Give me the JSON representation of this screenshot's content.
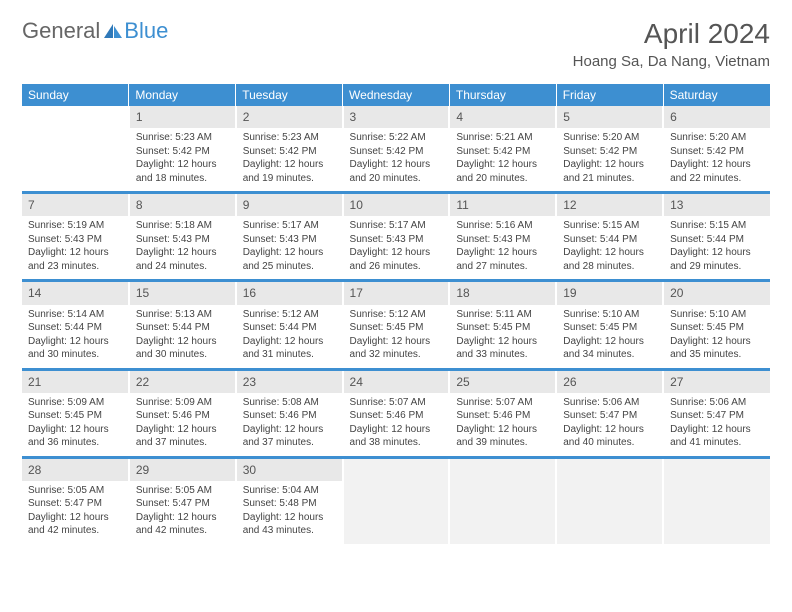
{
  "logo": {
    "general": "General",
    "blue": "Blue"
  },
  "title": "April 2024",
  "location": "Hoang Sa, Da Nang, Vietnam",
  "dayHeaders": [
    "Sunday",
    "Monday",
    "Tuesday",
    "Wednesday",
    "Thursday",
    "Friday",
    "Saturday"
  ],
  "colors": {
    "headerBlue": "#3d8fd1",
    "sailBlue": "#2f79b9",
    "dayNumBg": "#e8e8e8",
    "trailingBg": "#f2f2f2",
    "text": "#444444"
  },
  "layout": {
    "startDayOfWeek": 1,
    "daysInMonth": 30
  },
  "days": {
    "1": {
      "sunrise": "Sunrise: 5:23 AM",
      "sunset": "Sunset: 5:42 PM",
      "daylight1": "Daylight: 12 hours",
      "daylight2": "and 18 minutes."
    },
    "2": {
      "sunrise": "Sunrise: 5:23 AM",
      "sunset": "Sunset: 5:42 PM",
      "daylight1": "Daylight: 12 hours",
      "daylight2": "and 19 minutes."
    },
    "3": {
      "sunrise": "Sunrise: 5:22 AM",
      "sunset": "Sunset: 5:42 PM",
      "daylight1": "Daylight: 12 hours",
      "daylight2": "and 20 minutes."
    },
    "4": {
      "sunrise": "Sunrise: 5:21 AM",
      "sunset": "Sunset: 5:42 PM",
      "daylight1": "Daylight: 12 hours",
      "daylight2": "and 20 minutes."
    },
    "5": {
      "sunrise": "Sunrise: 5:20 AM",
      "sunset": "Sunset: 5:42 PM",
      "daylight1": "Daylight: 12 hours",
      "daylight2": "and 21 minutes."
    },
    "6": {
      "sunrise": "Sunrise: 5:20 AM",
      "sunset": "Sunset: 5:42 PM",
      "daylight1": "Daylight: 12 hours",
      "daylight2": "and 22 minutes."
    },
    "7": {
      "sunrise": "Sunrise: 5:19 AM",
      "sunset": "Sunset: 5:43 PM",
      "daylight1": "Daylight: 12 hours",
      "daylight2": "and 23 minutes."
    },
    "8": {
      "sunrise": "Sunrise: 5:18 AM",
      "sunset": "Sunset: 5:43 PM",
      "daylight1": "Daylight: 12 hours",
      "daylight2": "and 24 minutes."
    },
    "9": {
      "sunrise": "Sunrise: 5:17 AM",
      "sunset": "Sunset: 5:43 PM",
      "daylight1": "Daylight: 12 hours",
      "daylight2": "and 25 minutes."
    },
    "10": {
      "sunrise": "Sunrise: 5:17 AM",
      "sunset": "Sunset: 5:43 PM",
      "daylight1": "Daylight: 12 hours",
      "daylight2": "and 26 minutes."
    },
    "11": {
      "sunrise": "Sunrise: 5:16 AM",
      "sunset": "Sunset: 5:43 PM",
      "daylight1": "Daylight: 12 hours",
      "daylight2": "and 27 minutes."
    },
    "12": {
      "sunrise": "Sunrise: 5:15 AM",
      "sunset": "Sunset: 5:44 PM",
      "daylight1": "Daylight: 12 hours",
      "daylight2": "and 28 minutes."
    },
    "13": {
      "sunrise": "Sunrise: 5:15 AM",
      "sunset": "Sunset: 5:44 PM",
      "daylight1": "Daylight: 12 hours",
      "daylight2": "and 29 minutes."
    },
    "14": {
      "sunrise": "Sunrise: 5:14 AM",
      "sunset": "Sunset: 5:44 PM",
      "daylight1": "Daylight: 12 hours",
      "daylight2": "and 30 minutes."
    },
    "15": {
      "sunrise": "Sunrise: 5:13 AM",
      "sunset": "Sunset: 5:44 PM",
      "daylight1": "Daylight: 12 hours",
      "daylight2": "and 30 minutes."
    },
    "16": {
      "sunrise": "Sunrise: 5:12 AM",
      "sunset": "Sunset: 5:44 PM",
      "daylight1": "Daylight: 12 hours",
      "daylight2": "and 31 minutes."
    },
    "17": {
      "sunrise": "Sunrise: 5:12 AM",
      "sunset": "Sunset: 5:45 PM",
      "daylight1": "Daylight: 12 hours",
      "daylight2": "and 32 minutes."
    },
    "18": {
      "sunrise": "Sunrise: 5:11 AM",
      "sunset": "Sunset: 5:45 PM",
      "daylight1": "Daylight: 12 hours",
      "daylight2": "and 33 minutes."
    },
    "19": {
      "sunrise": "Sunrise: 5:10 AM",
      "sunset": "Sunset: 5:45 PM",
      "daylight1": "Daylight: 12 hours",
      "daylight2": "and 34 minutes."
    },
    "20": {
      "sunrise": "Sunrise: 5:10 AM",
      "sunset": "Sunset: 5:45 PM",
      "daylight1": "Daylight: 12 hours",
      "daylight2": "and 35 minutes."
    },
    "21": {
      "sunrise": "Sunrise: 5:09 AM",
      "sunset": "Sunset: 5:45 PM",
      "daylight1": "Daylight: 12 hours",
      "daylight2": "and 36 minutes."
    },
    "22": {
      "sunrise": "Sunrise: 5:09 AM",
      "sunset": "Sunset: 5:46 PM",
      "daylight1": "Daylight: 12 hours",
      "daylight2": "and 37 minutes."
    },
    "23": {
      "sunrise": "Sunrise: 5:08 AM",
      "sunset": "Sunset: 5:46 PM",
      "daylight1": "Daylight: 12 hours",
      "daylight2": "and 37 minutes."
    },
    "24": {
      "sunrise": "Sunrise: 5:07 AM",
      "sunset": "Sunset: 5:46 PM",
      "daylight1": "Daylight: 12 hours",
      "daylight2": "and 38 minutes."
    },
    "25": {
      "sunrise": "Sunrise: 5:07 AM",
      "sunset": "Sunset: 5:46 PM",
      "daylight1": "Daylight: 12 hours",
      "daylight2": "and 39 minutes."
    },
    "26": {
      "sunrise": "Sunrise: 5:06 AM",
      "sunset": "Sunset: 5:47 PM",
      "daylight1": "Daylight: 12 hours",
      "daylight2": "and 40 minutes."
    },
    "27": {
      "sunrise": "Sunrise: 5:06 AM",
      "sunset": "Sunset: 5:47 PM",
      "daylight1": "Daylight: 12 hours",
      "daylight2": "and 41 minutes."
    },
    "28": {
      "sunrise": "Sunrise: 5:05 AM",
      "sunset": "Sunset: 5:47 PM",
      "daylight1": "Daylight: 12 hours",
      "daylight2": "and 42 minutes."
    },
    "29": {
      "sunrise": "Sunrise: 5:05 AM",
      "sunset": "Sunset: 5:47 PM",
      "daylight1": "Daylight: 12 hours",
      "daylight2": "and 42 minutes."
    },
    "30": {
      "sunrise": "Sunrise: 5:04 AM",
      "sunset": "Sunset: 5:48 PM",
      "daylight1": "Daylight: 12 hours",
      "daylight2": "and 43 minutes."
    }
  }
}
